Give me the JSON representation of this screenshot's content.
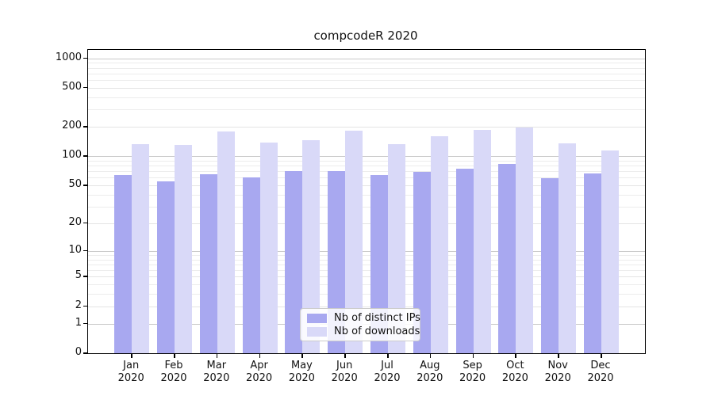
{
  "figure": {
    "title": "compcodeR 2020"
  },
  "chart_data": {
    "type": "bar",
    "title": "compcodeR 2020",
    "scale": "log1p",
    "categories": [
      "Jan",
      "Feb",
      "Mar",
      "Apr",
      "May",
      "Jun",
      "Jul",
      "Aug",
      "Sep",
      "Oct",
      "Nov",
      "Dec"
    ],
    "category_year": "2020",
    "series": [
      {
        "name": "Nb of distinct IPs",
        "color": "#a8a8f0",
        "values": [
          64,
          55,
          65,
          60,
          70,
          71,
          64,
          69,
          75,
          83,
          59,
          67
        ]
      },
      {
        "name": "Nb of downloads",
        "color": "#d9d9f8",
        "values": [
          133,
          130,
          178,
          139,
          145,
          184,
          133,
          161,
          185,
          198,
          135,
          115
        ]
      }
    ],
    "y_ticks": [
      0,
      1,
      2,
      5,
      10,
      20,
      50,
      100,
      200,
      500,
      1000
    ],
    "minor_gridlines": [
      3,
      4,
      6,
      7,
      8,
      9,
      30,
      40,
      60,
      70,
      80,
      90,
      300,
      400,
      600,
      700,
      800,
      900
    ],
    "ylim": [
      0,
      1220
    ],
    "grid": "horizontal",
    "legend_position": "bottom-center",
    "colors": {
      "axis": "#000000",
      "grid_major": "#c9c9c9",
      "grid_mid": "#e4e4e4",
      "grid_minor": "#ececec",
      "text": "#111111",
      "background": "#ffffff"
    }
  }
}
